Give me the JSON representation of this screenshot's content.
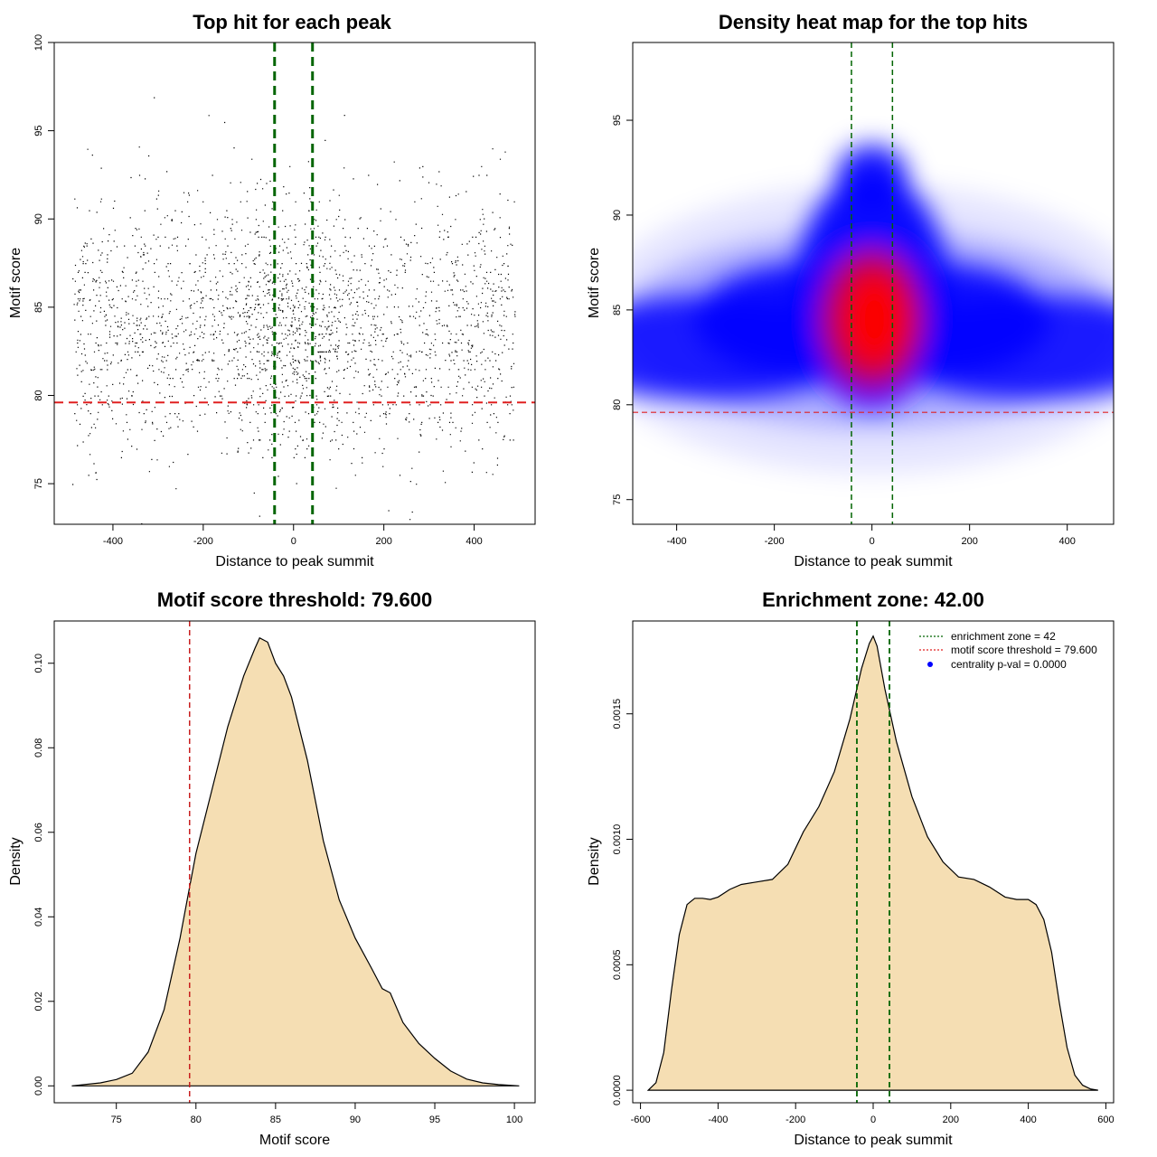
{
  "chart_data": [
    {
      "type": "scatter",
      "title": "Top hit for each peak",
      "xlabel": "Distance to peak summit",
      "ylabel": "Motif score",
      "xlim": [
        -530,
        535
      ],
      "ylim": [
        72.7,
        100
      ],
      "x_ticks": [
        "-400",
        "-200",
        "0",
        "200",
        "400"
      ],
      "y_ticks": [
        "75",
        "80",
        "85",
        "90",
        "95",
        "100"
      ],
      "point_count": 30000,
      "point_x_range": [
        -490,
        490
      ],
      "point_density_center": 84,
      "reference_lines": {
        "enrichment_zone": [
          -42,
          42
        ],
        "score_threshold": 79.6
      },
      "colors": {
        "points": "#000000",
        "zone": "#006400",
        "threshold": "#e02020"
      }
    },
    {
      "type": "heatmap",
      "title": "Density heat map for the top hits",
      "xlabel": "Distance to peak summit",
      "ylabel": "Motif score",
      "xlim": [
        -490,
        495
      ],
      "ylim": [
        73.7,
        99.1
      ],
      "x_ticks": [
        "-400",
        "-200",
        "0",
        "200",
        "400"
      ],
      "y_ticks": [
        "75",
        "80",
        "85",
        "90",
        "95"
      ],
      "density_peak": {
        "x": 0,
        "y": 84.5
      },
      "reference_lines": {
        "enrichment_zone": [
          -42,
          42
        ],
        "score_threshold": 79.6
      },
      "colors": {
        "low": "#ffffff",
        "mid": "#0000ff",
        "high": "#ff0000",
        "zone": "#006400",
        "threshold": "#e02020"
      }
    },
    {
      "type": "area",
      "title": "Motif score threshold: 79.600",
      "xlabel": "Motif score",
      "ylabel": "Density",
      "xlim": [
        71.1,
        101.3
      ],
      "ylim": [
        -0.004,
        0.11
      ],
      "x_ticks": [
        "75",
        "80",
        "85",
        "90",
        "95",
        "100"
      ],
      "y_ticks": [
        "0.00",
        "0.02",
        "0.04",
        "0.06",
        "0.08",
        "0.10"
      ],
      "x": [
        72.2,
        74,
        75,
        76,
        77,
        78,
        79,
        79.6,
        80,
        81,
        82,
        83,
        83.7,
        84,
        84.5,
        85,
        85.5,
        86,
        87,
        88,
        89,
        90,
        91,
        91.7,
        92.2,
        93,
        94,
        95,
        96,
        97,
        98,
        99,
        100.3
      ],
      "y": [
        0,
        0.0007,
        0.0015,
        0.003,
        0.008,
        0.018,
        0.035,
        0.047,
        0.055,
        0.07,
        0.085,
        0.097,
        0.1035,
        0.106,
        0.105,
        0.1,
        0.097,
        0.092,
        0.077,
        0.058,
        0.044,
        0.035,
        0.028,
        0.023,
        0.022,
        0.015,
        0.01,
        0.0065,
        0.0035,
        0.0016,
        0.0007,
        0.0003,
        0
      ],
      "threshold": 79.6,
      "colors": {
        "fill": "#f5deb3",
        "line": "#000000",
        "threshold": "#c81e1e"
      }
    },
    {
      "type": "area",
      "title": "Enrichment zone: 42.00",
      "xlabel": "Distance to peak summit",
      "ylabel": "Density",
      "xlim": [
        -620,
        620
      ],
      "ylim": [
        -5e-05,
        0.00187
      ],
      "x_ticks": [
        "-600",
        "-400",
        "-200",
        "0",
        "200",
        "400",
        "600"
      ],
      "y_ticks": [
        "0.0000",
        "0.0005",
        "0.0010",
        "0.0015"
      ],
      "x": [
        -580,
        -560,
        -540,
        -520,
        -500,
        -480,
        -460,
        -440,
        -420,
        -400,
        -370,
        -340,
        -300,
        -260,
        -220,
        -180,
        -140,
        -100,
        -60,
        -30,
        -10,
        0,
        10,
        30,
        60,
        100,
        140,
        180,
        220,
        260,
        300,
        340,
        370,
        400,
        420,
        440,
        460,
        480,
        500,
        520,
        540,
        560,
        580
      ],
      "y": [
        0,
        3e-05,
        0.00015,
        0.0004,
        0.00062,
        0.00074,
        0.000765,
        0.000765,
        0.00076,
        0.00077,
        0.0008,
        0.00082,
        0.00083,
        0.00084,
        0.0009,
        0.00103,
        0.00113,
        0.00127,
        0.00148,
        0.00168,
        0.00178,
        0.00181,
        0.00177,
        0.0016,
        0.00139,
        0.00117,
        0.00101,
        0.00091,
        0.00085,
        0.00084,
        0.00081,
        0.00077,
        0.00076,
        0.00076,
        0.00074,
        0.00068,
        0.00055,
        0.00035,
        0.00017,
        6e-05,
        2e-05,
        5e-06,
        0
      ],
      "zone": [
        -42,
        42
      ],
      "legend": [
        "enrichment zone = 42",
        "motif score threshold = 79.600",
        "centrality p-val = 0.0000"
      ],
      "legend_placement": "top-right",
      "colors": {
        "fill": "#f5deb3",
        "line": "#000000",
        "zone": "#006400",
        "threshold": "#e02020",
        "pval": "#0000ff"
      }
    }
  ]
}
